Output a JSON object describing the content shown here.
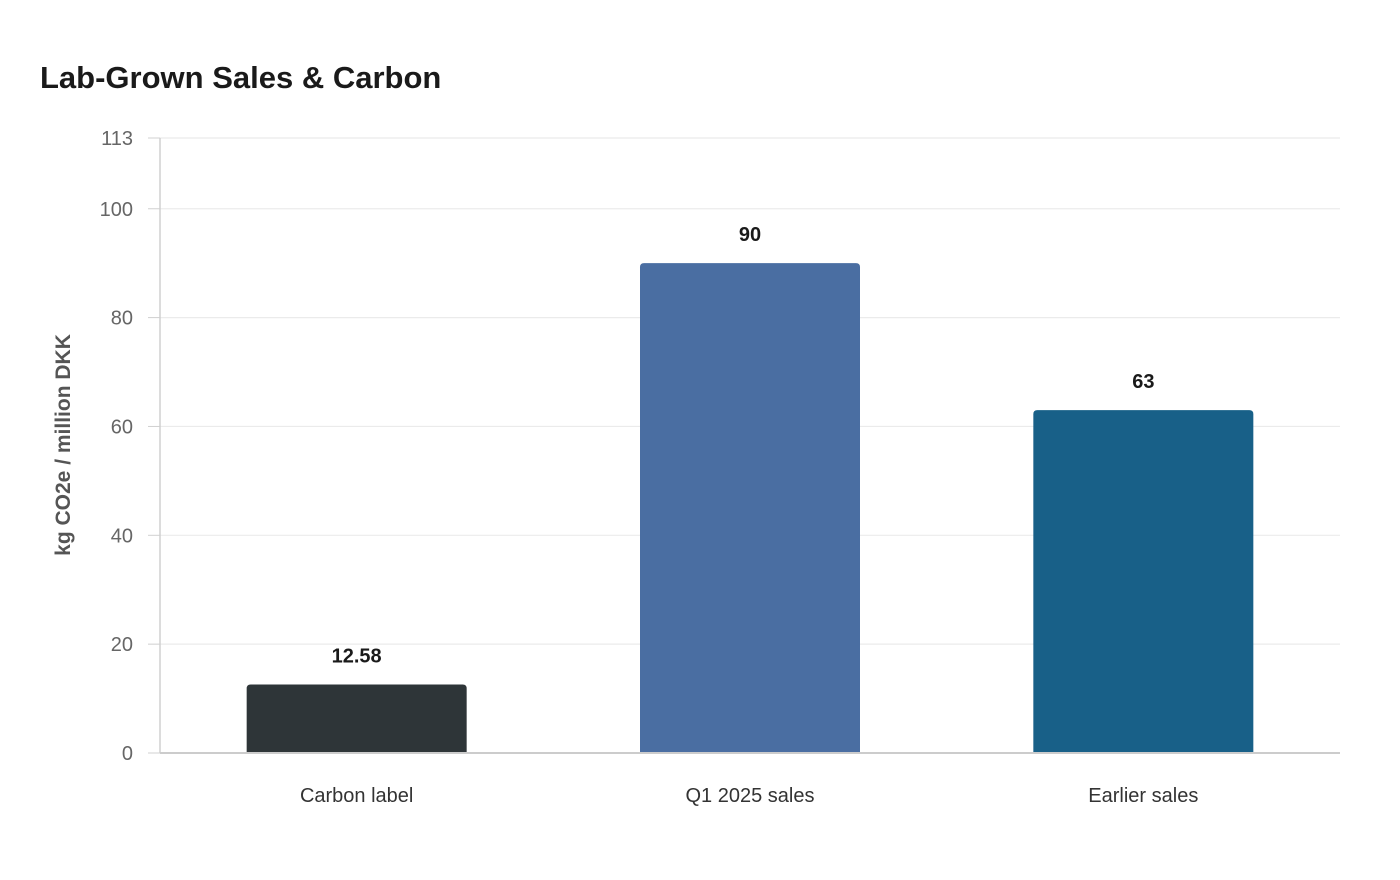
{
  "chart_data": {
    "type": "bar",
    "title": "Lab-Grown Sales & Carbon",
    "xlabel": "",
    "ylabel": "kg CO2e / million DKK",
    "categories": [
      "Carbon label",
      "Q1 2025 sales",
      "Earlier sales"
    ],
    "values": [
      12.58,
      90,
      63
    ],
    "value_labels": [
      "12.58",
      "90",
      "63"
    ],
    "bar_colors": [
      "#2e3538",
      "#4a6ea2",
      "#186088"
    ],
    "ylim": [
      0,
      113
    ],
    "yticks": [
      0,
      20,
      40,
      60,
      80,
      100,
      113
    ],
    "grid": true,
    "legend": "none"
  }
}
